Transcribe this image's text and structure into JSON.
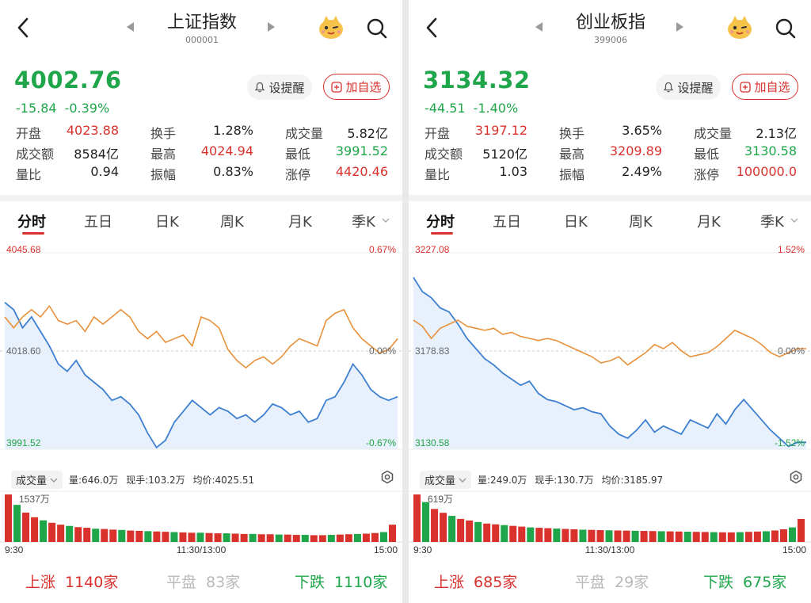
{
  "panels": [
    {
      "title": "上证指数",
      "code": "000001",
      "price": "4002.76",
      "change": "-15.84",
      "change_pct": "-0.39%",
      "alert_label": "设提醒",
      "watch_label": "加自选",
      "stats": [
        {
          "label": "开盘",
          "value": "4023.88",
          "tone": "up"
        },
        {
          "label": "换手",
          "value": "1.28%",
          "tone": "neutral"
        },
        {
          "label": "成交量",
          "value": "5.82亿",
          "tone": "neutral"
        },
        {
          "label": "成交额",
          "value": "8584亿",
          "tone": "neutral"
        },
        {
          "label": "最高",
          "value": "4024.94",
          "tone": "up"
        },
        {
          "label": "最低",
          "value": "3991.52",
          "tone": "down"
        },
        {
          "label": "量比",
          "value": "0.94",
          "tone": "neutral"
        },
        {
          "label": "振幅",
          "value": "0.83%",
          "tone": "neutral"
        },
        {
          "label": "涨停",
          "value": "4420.46",
          "tone": "up"
        }
      ],
      "tabs": [
        "分时",
        "五日",
        "日K",
        "周K",
        "月K",
        "季K"
      ],
      "active_tab": 0,
      "chart": {
        "top_price": "4045.68",
        "mid_price": "4018.60",
        "bottom_price": "3991.52",
        "top_pct": "0.67%",
        "mid_pct": "0.00%",
        "bottom_pct": "-0.67%",
        "price_range": [
          3991.52,
          4045.68
        ],
        "prev_close": 4018.6,
        "price_series": [
          4032,
          4030,
          4025,
          4028,
          4024,
          4020,
          4015,
          4013,
          4016,
          4012,
          4010,
          4008,
          4005,
          4006,
          4004,
          4001,
          3996,
          3992,
          3994,
          3999,
          4002,
          4005,
          4003,
          4001,
          4003,
          4002,
          4000,
          4001,
          3999,
          4001,
          4004,
          4003,
          4001,
          4002,
          3999,
          4000,
          4005,
          4006,
          4010,
          4015,
          4012,
          4008,
          4006,
          4005,
          4006
        ],
        "avg_series": [
          4028,
          4025,
          4028,
          4030,
          4028,
          4031,
          4027,
          4026,
          4027,
          4024,
          4028,
          4026,
          4028,
          4030,
          4028,
          4024,
          4022,
          4024,
          4021,
          4022,
          4023,
          4020,
          4028,
          4027,
          4025,
          4019,
          4016,
          4014,
          4016,
          4017,
          4015,
          4017,
          4020,
          4022,
          4021,
          4020,
          4027,
          4029,
          4030,
          4025,
          4022,
          4020,
          4018,
          4019,
          4022
        ]
      },
      "volume_bar": {
        "label": "成交量",
        "total": "量:646.0万",
        "current": "现手:103.2万",
        "avg_price": "均价:4025.51",
        "max_label": "1537万"
      },
      "time_labels": [
        "9:30",
        "11:30/13:00",
        "15:00"
      ],
      "volume_series": [
        1537,
        1200,
        950,
        800,
        700,
        620,
        560,
        520,
        480,
        460,
        430,
        420,
        400,
        390,
        370,
        360,
        350,
        340,
        330,
        320,
        310,
        300,
        300,
        290,
        280,
        280,
        270,
        260,
        260,
        250,
        250,
        240,
        240,
        230,
        230,
        220,
        220,
        230,
        240,
        250,
        260,
        270,
        290,
        320,
        560
      ],
      "breadth": {
        "up_label": "上涨",
        "up": "1140家",
        "flat_label": "平盘",
        "flat": "83家",
        "down_label": "下跌",
        "down": "1110家"
      }
    },
    {
      "title": "创业板指",
      "code": "399006",
      "price": "3134.32",
      "change": "-44.51",
      "change_pct": "-1.40%",
      "alert_label": "设提醒",
      "watch_label": "加自选",
      "stats": [
        {
          "label": "开盘",
          "value": "3197.12",
          "tone": "up"
        },
        {
          "label": "换手",
          "value": "3.65%",
          "tone": "neutral"
        },
        {
          "label": "成交量",
          "value": "2.13亿",
          "tone": "neutral"
        },
        {
          "label": "成交额",
          "value": "5120亿",
          "tone": "neutral"
        },
        {
          "label": "最高",
          "value": "3209.89",
          "tone": "up"
        },
        {
          "label": "最低",
          "value": "3130.58",
          "tone": "down"
        },
        {
          "label": "量比",
          "value": "1.03",
          "tone": "neutral"
        },
        {
          "label": "振幅",
          "value": "2.49%",
          "tone": "neutral"
        },
        {
          "label": "涨停",
          "value": "100000.0",
          "tone": "up"
        }
      ],
      "tabs": [
        "分时",
        "五日",
        "日K",
        "周K",
        "月K",
        "季K"
      ],
      "active_tab": 0,
      "chart": {
        "top_price": "3227.08",
        "mid_price": "3178.83",
        "bottom_price": "3130.58",
        "top_pct": "1.52%",
        "mid_pct": "0.00%",
        "bottom_pct": "-1.52%",
        "price_range": [
          3130.58,
          3227.08
        ],
        "prev_close": 3178.83,
        "price_series": [
          3215,
          3208,
          3205,
          3200,
          3198,
          3192,
          3185,
          3180,
          3175,
          3172,
          3168,
          3165,
          3162,
          3164,
          3158,
          3155,
          3154,
          3152,
          3150,
          3151,
          3149,
          3148,
          3142,
          3138,
          3136,
          3140,
          3145,
          3139,
          3142,
          3140,
          3138,
          3145,
          3143,
          3141,
          3148,
          3143,
          3150,
          3155,
          3150,
          3145,
          3140,
          3136,
          3132,
          3134,
          3134
        ],
        "avg_series": [
          3194,
          3191,
          3185,
          3190,
          3192,
          3194,
          3191,
          3190,
          3189,
          3190,
          3187,
          3188,
          3186,
          3185,
          3184,
          3185,
          3184,
          3182,
          3180,
          3178,
          3176,
          3173,
          3174,
          3176,
          3172,
          3175,
          3178,
          3182,
          3180,
          3183,
          3179,
          3176,
          3177,
          3178,
          3181,
          3185,
          3189,
          3187,
          3185,
          3182,
          3178,
          3176,
          3178,
          3180,
          3180
        ]
      },
      "volume_bar": {
        "label": "成交量",
        "total": "量:249.0万",
        "current": "现手:130.7万",
        "avg_price": "均价:3185.97",
        "max_label": "619万"
      },
      "time_labels": [
        "9:30",
        "11:30/13:00",
        "15:00"
      ],
      "volume_series": [
        619,
        520,
        430,
        380,
        340,
        300,
        280,
        260,
        240,
        230,
        220,
        210,
        200,
        190,
        185,
        180,
        175,
        170,
        165,
        160,
        158,
        155,
        152,
        150,
        148,
        146,
        144,
        142,
        140,
        138,
        136,
        134,
        132,
        130,
        128,
        126,
        125,
        128,
        132,
        136,
        140,
        150,
        165,
        190,
        300
      ],
      "breadth": {
        "up_label": "上涨",
        "up": "685家",
        "flat_label": "平盘",
        "flat": "29家",
        "down_label": "下跌",
        "down": "675家"
      }
    }
  ],
  "colors": {
    "up": "#d9322d",
    "down": "#1fa64a",
    "price_line": "#3d7fd1",
    "avg_line": "#e8913a",
    "neutral": "#222222"
  }
}
